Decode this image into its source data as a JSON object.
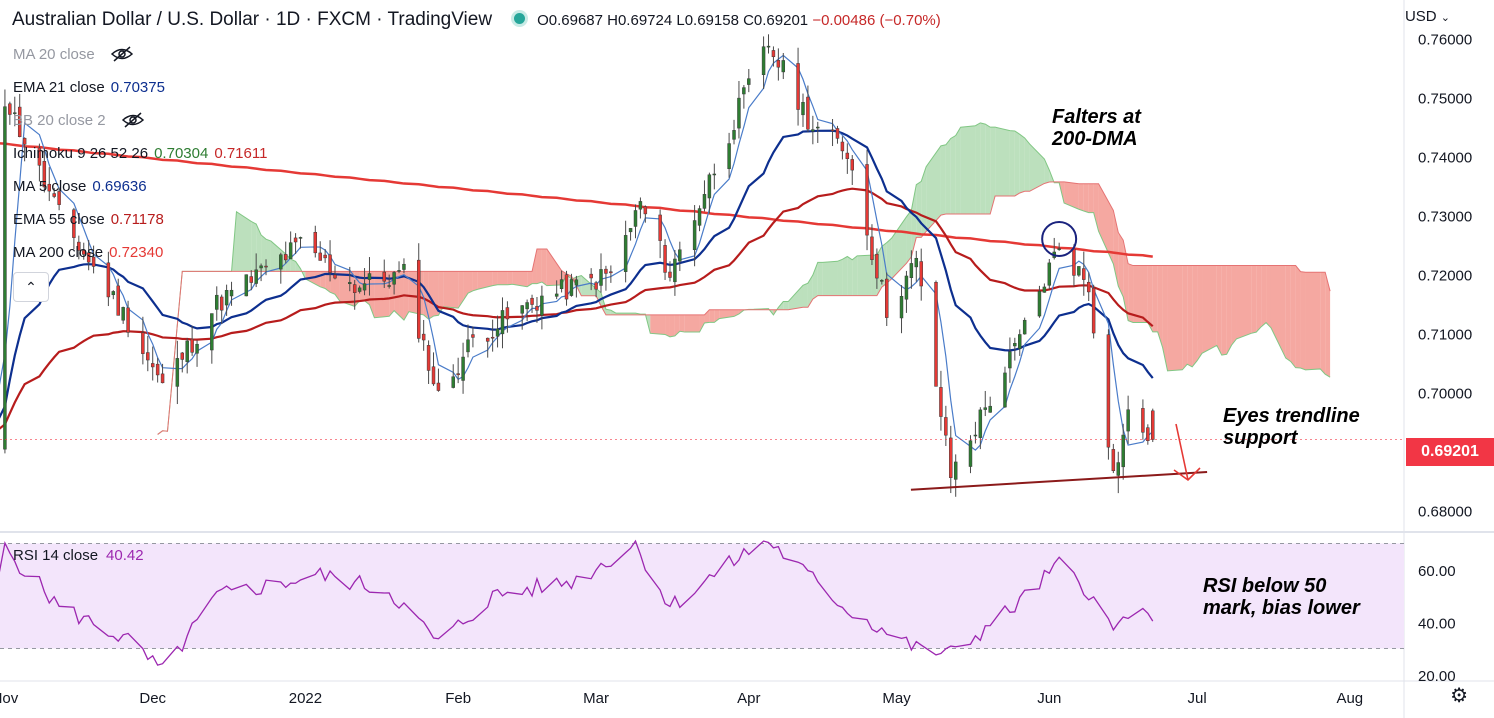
{
  "header": {
    "title": "Australian Dollar / U.S. Dollar · 1D · FXCM · TradingView",
    "ohlc": "O0.69687 H0.69724 L0.69158 C0.69201",
    "change": "−0.00486 (−0.70%)"
  },
  "indicators": [
    {
      "label": "MA 20 close",
      "value": "",
      "value2": "",
      "hidden": true
    },
    {
      "label": "EMA 21 close",
      "value": "0.70375",
      "value2": "",
      "color": "#0d2f8f"
    },
    {
      "label": "BB 20 close 2",
      "value": "",
      "value2": "",
      "hidden": true
    },
    {
      "label": "Ichimoku 9 26 52 26",
      "value": "0.70304",
      "value2": "0.71611",
      "color": "#2e7d32",
      "color2": "#c62828"
    },
    {
      "label": "MA 5 close",
      "value": "0.69636",
      "value2": "",
      "color": "#0d2f8f"
    },
    {
      "label": "EMA 55 close",
      "value": "0.71178",
      "value2": "",
      "color": "#b71c1c"
    },
    {
      "label": "MA 200 close",
      "value": "0.72340",
      "value2": "",
      "color": "#e53935"
    }
  ],
  "currency": "USD",
  "last_price": "0.69201",
  "rsi": {
    "label": "RSI 14 close",
    "value": "40.42"
  },
  "annotations": {
    "falters": [
      "Falters at",
      "200-DMA"
    ],
    "eyes": [
      "Eyes trendline",
      "support"
    ],
    "rsi_note": [
      "RSI below 50",
      "mark, bias lower"
    ]
  },
  "colors": {
    "up": "#26a69a",
    "up_body": "#2e7d32",
    "down": "#e53935",
    "ema21": "#0d2f8f",
    "ma5": "#4a7cc9",
    "ema55": "#b71c1c",
    "ma200": "#e53935",
    "kumo_bull": "#a5d6a7",
    "kumo_bear": "#f28b82",
    "rsi_line": "#9c27b0",
    "rsi_band": "#f3e5fb"
  },
  "chart_data": [
    {
      "type": "candlestick",
      "symbol": "AUDUSD",
      "timeframe": "1D",
      "x_ticks": [
        "Nov",
        "Dec",
        "2022",
        "Feb",
        "Mar",
        "Apr",
        "May",
        "Jun",
        "Jul",
        "Aug"
      ],
      "y_ticks": [
        "0.76000",
        "0.75000",
        "0.74000",
        "0.73000",
        "0.72000",
        "0.71000",
        "0.70000",
        "0.69000",
        "0.68000"
      ],
      "ylim": [
        0.6765,
        0.7665
      ],
      "close_path": [
        {
          "date": "2021-11-01",
          "close": 0.75
        },
        {
          "date": "2021-11-12",
          "close": 0.73
        },
        {
          "date": "2021-11-26",
          "close": 0.712
        },
        {
          "date": "2021-12-03",
          "close": 0.701
        },
        {
          "date": "2021-12-14",
          "close": 0.715
        },
        {
          "date": "2021-12-31",
          "close": 0.725
        },
        {
          "date": "2022-01-11",
          "close": 0.718
        },
        {
          "date": "2022-01-21",
          "close": 0.72
        },
        {
          "date": "2022-01-28",
          "close": 0.699
        },
        {
          "date": "2022-02-04",
          "close": 0.709
        },
        {
          "date": "2022-02-18",
          "close": 0.716
        },
        {
          "date": "2022-03-04",
          "close": 0.72
        },
        {
          "date": "2022-03-10",
          "close": 0.732
        },
        {
          "date": "2022-03-16",
          "close": 0.72
        },
        {
          "date": "2022-03-31",
          "close": 0.75
        },
        {
          "date": "2022-04-05",
          "close": 0.759
        },
        {
          "date": "2022-04-14",
          "close": 0.745
        },
        {
          "date": "2022-04-21",
          "close": 0.741
        },
        {
          "date": "2022-04-29",
          "close": 0.714
        },
        {
          "date": "2022-05-05",
          "close": 0.722
        },
        {
          "date": "2022-05-12",
          "close": 0.686
        },
        {
          "date": "2022-05-25",
          "close": 0.707
        },
        {
          "date": "2022-06-03",
          "close": 0.725
        },
        {
          "date": "2022-06-09",
          "close": 0.718
        },
        {
          "date": "2022-06-14",
          "close": 0.686
        },
        {
          "date": "2022-06-17",
          "close": 0.696
        },
        {
          "date": "2022-06-22",
          "close": 0.692
        }
      ]
    },
    {
      "type": "line",
      "title": "RSI 14 close",
      "y_ticks": [
        "60.00",
        "40.00",
        "20.00"
      ],
      "ylim": [
        18,
        74
      ],
      "band": [
        30,
        70
      ],
      "last_value": 40.42,
      "values_path": [
        {
          "date": "2021-11-01",
          "rsi": 68
        },
        {
          "date": "2021-11-12",
          "rsi": 46
        },
        {
          "date": "2021-11-26",
          "rsi": 33
        },
        {
          "date": "2021-12-03",
          "rsi": 21
        },
        {
          "date": "2021-12-14",
          "rsi": 50
        },
        {
          "date": "2022-01-04",
          "rsi": 58
        },
        {
          "date": "2022-01-18",
          "rsi": 52
        },
        {
          "date": "2022-01-28",
          "rsi": 32
        },
        {
          "date": "2022-02-08",
          "rsi": 50
        },
        {
          "date": "2022-02-25",
          "rsi": 56
        },
        {
          "date": "2022-03-09",
          "rsi": 70
        },
        {
          "date": "2022-03-16",
          "rsi": 46
        },
        {
          "date": "2022-03-31",
          "rsi": 66
        },
        {
          "date": "2022-04-05",
          "rsi": 71
        },
        {
          "date": "2022-04-21",
          "rsi": 45
        },
        {
          "date": "2022-05-05",
          "rsi": 30
        },
        {
          "date": "2022-05-12",
          "rsi": 28
        },
        {
          "date": "2022-05-25",
          "rsi": 46
        },
        {
          "date": "2022-06-03",
          "rsi": 62
        },
        {
          "date": "2022-06-09",
          "rsi": 52
        },
        {
          "date": "2022-06-14",
          "rsi": 36
        },
        {
          "date": "2022-06-17",
          "rsi": 44
        },
        {
          "date": "2022-06-22",
          "rsi": 40.42
        }
      ]
    }
  ]
}
